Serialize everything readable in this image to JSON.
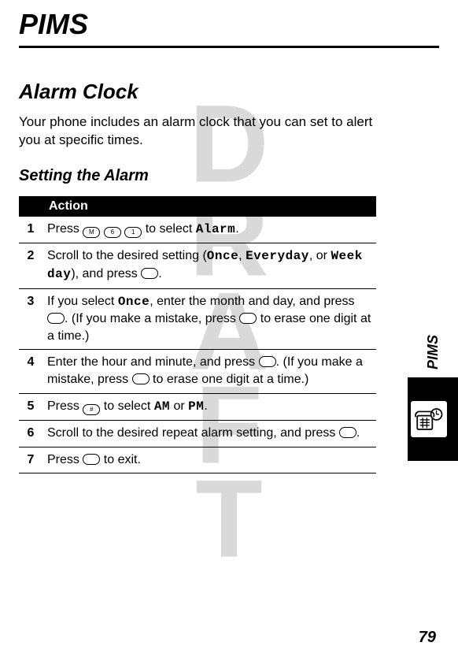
{
  "watermark": "DRAFT",
  "page_title": "PIMS",
  "section_title": "Alarm Clock",
  "intro_text": "Your phone includes an alarm clock that you can set to alert you at specific times.",
  "subsection_title": "Setting the Alarm",
  "table": {
    "header": "Action",
    "rows": [
      {
        "num": "1",
        "html": "Press <span class='keyicon'>M</span> <span class='keyicon'>6</span> <span class='keyicon'>1</span> to select <span class='monoish'>Alarm</span>."
      },
      {
        "num": "2",
        "html": "Scroll to the desired setting (<span class='monoish'>Once</span>, <span class='monoish'>Everyday</span>, or <span class='monoish'>Week day</span>), and press <span class='keyicon'></span>."
      },
      {
        "num": "3",
        "html": "If you select <span class='monoish'>Once</span>, enter the month and day, and press <span class='keyicon'></span>. (If you make a mistake, press <span class='keyicon'></span> to erase one digit at a time.)"
      },
      {
        "num": "4",
        "html": "Enter the hour and minute, and press <span class='keyicon'></span>. (If you make a mistake, press <span class='keyicon'></span> to erase one digit at a time.)"
      },
      {
        "num": "5",
        "html": "Press <span class='keyicon'>#</span> to select <span class='monoish'>AM</span> or <span class='monoish'>PM</span>."
      },
      {
        "num": "6",
        "html": "Scroll to the desired repeat alarm setting, and press <span class='keyicon'></span>."
      },
      {
        "num": "7",
        "html": "Press <span class='keyicon'></span> to exit."
      }
    ]
  },
  "side_label": "PIMS",
  "page_number": "79",
  "colors": {
    "watermark": "#d9d9d9",
    "text": "#000000",
    "background": "#ffffff",
    "header_bg": "#000000",
    "header_fg": "#ffffff"
  }
}
